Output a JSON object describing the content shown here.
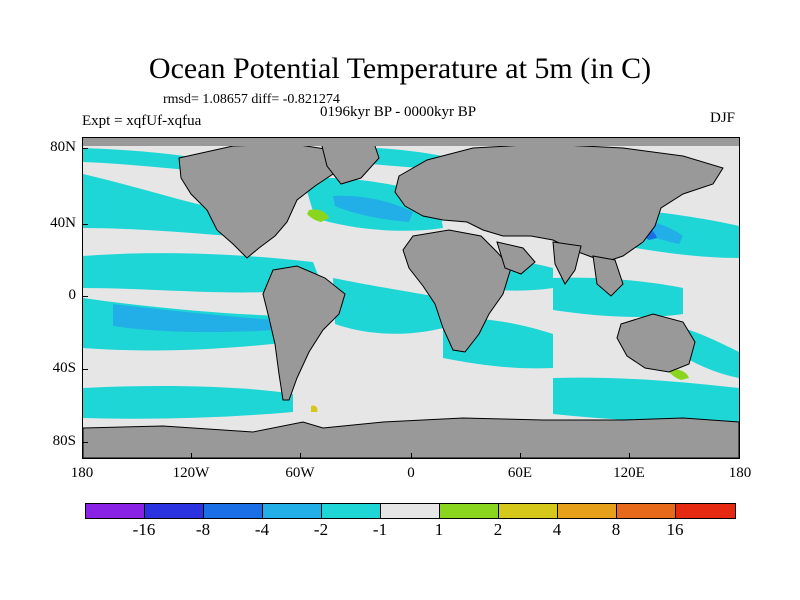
{
  "title": "Ocean Potential Temperature at 5m (in C)",
  "stats": "rmsd= 1.08657  diff= -0.821274",
  "period": "0196kyr BP - 0000kyr BP",
  "experiment": "Expt = xqfUf-xqfua",
  "season": "DJF",
  "lat_labels": [
    "80N",
    "40N",
    "0",
    "40S",
    "80S"
  ],
  "lon_labels": [
    "180",
    "120W",
    "60W",
    "0",
    "60E",
    "120E",
    "180"
  ],
  "colorbar": {
    "colors": [
      "#8a22e6",
      "#2b33e0",
      "#1a6fe6",
      "#22aee6",
      "#1fd6d6",
      "#e6e6e6",
      "#8ad61f",
      "#d6c81a",
      "#e6a01a",
      "#e66a1a",
      "#e62a12"
    ],
    "labels": [
      "-16",
      "-8",
      "-4",
      "-2",
      "-1",
      "1",
      "2",
      "4",
      "8",
      "16"
    ]
  },
  "palette": {
    "land": "#999999",
    "cool_strong": "#1fd6d6",
    "cool_mid": "#22aee6",
    "cool_deep": "#1a6fe6",
    "neutral": "#e6e6e6",
    "warm_slight": "#8ad61f",
    "warm": "#d6c81a"
  }
}
